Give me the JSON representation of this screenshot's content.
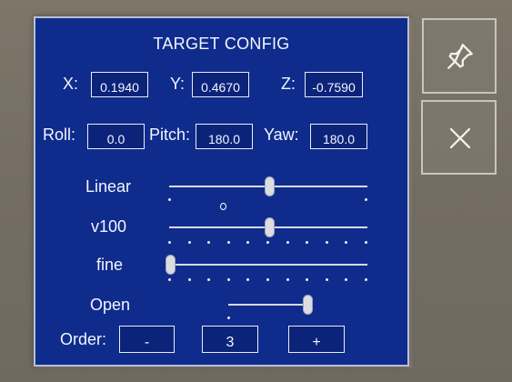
{
  "panel": {
    "title": "TARGET CONFIG",
    "position": {
      "x_label": "X:",
      "x_value": "0.1940",
      "y_label": "Y:",
      "y_value": "0.4670",
      "z_label": "Z:",
      "z_value": "-0.7590"
    },
    "rotation": {
      "roll_label": "Roll:",
      "roll_value": "0.0",
      "pitch_label": "Pitch:",
      "pitch_value": "180.0",
      "yaw_label": "Yaw:",
      "yaw_value": "180.0"
    },
    "sliders": [
      {
        "label": "Linear",
        "level": 0.5
      },
      {
        "label": "v100",
        "level": 0.5
      },
      {
        "label": "fine",
        "level": 0.0
      },
      {
        "label": "Open",
        "level": 1.0
      }
    ],
    "order": {
      "label": "Order:",
      "minus_label": "-",
      "value": "3",
      "plus_label": "+"
    }
  },
  "side_buttons": {
    "pin_icon": "pin-icon",
    "close_icon": "close-icon"
  },
  "colors": {
    "panel_bg": "#0f2c8c",
    "field_bg": "#0b247a",
    "text": "#f3f5ff",
    "background": "#766f64"
  }
}
